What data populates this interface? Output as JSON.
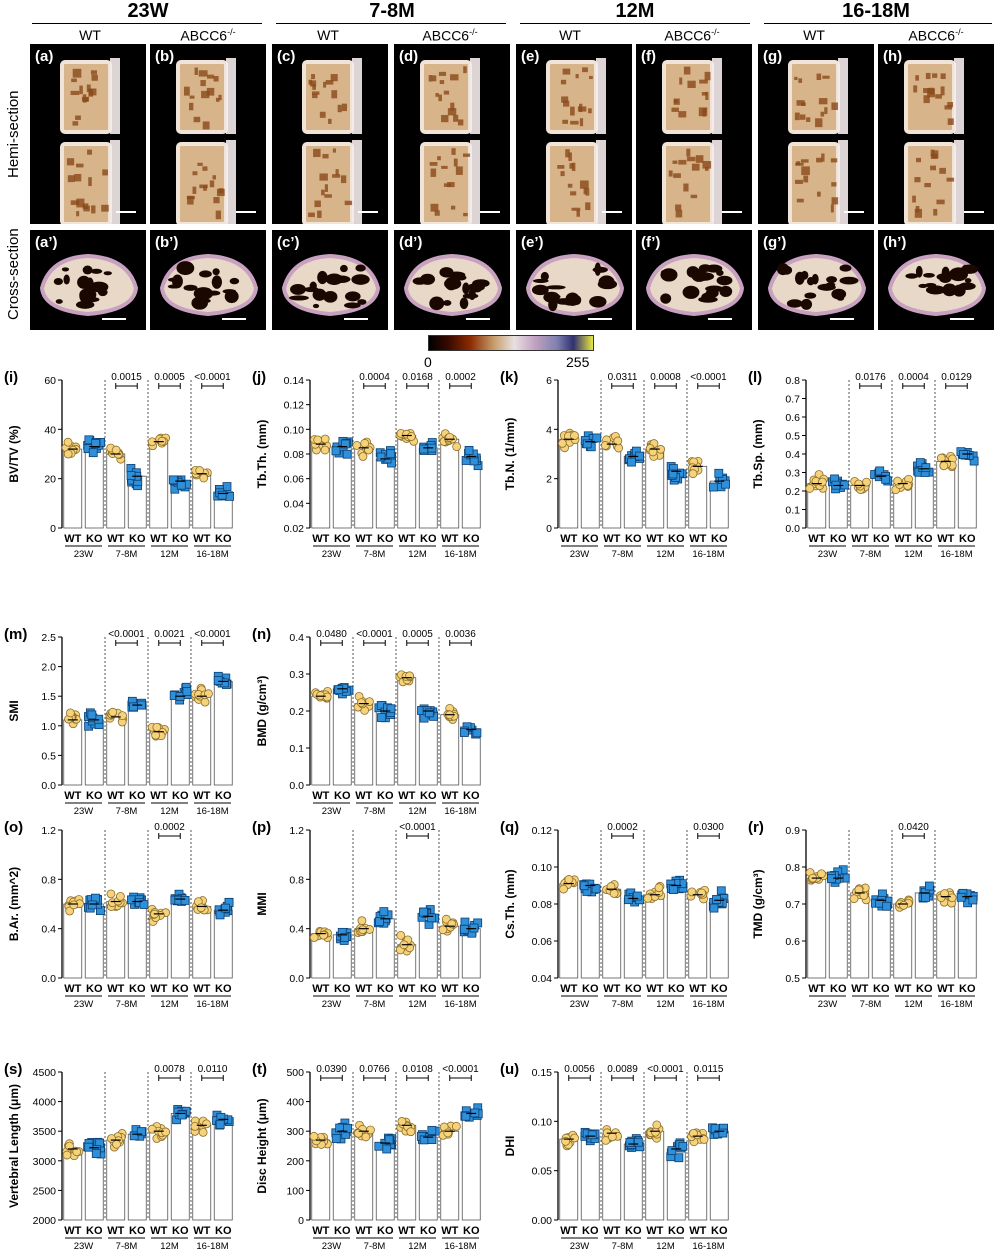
{
  "header": {
    "ages": [
      "23W",
      "7-8M",
      "12M",
      "16-18M"
    ],
    "genotypes": [
      "WT",
      "ABCC6",
      "WT",
      "ABCC6",
      "WT",
      "ABCC6",
      "WT",
      "ABCC6"
    ],
    "genotype_sup": "-/-"
  },
  "row_labels": {
    "hemi": "Hemi-section",
    "cross": "Cross-section"
  },
  "panels": {
    "hemi": [
      "(a)",
      "(b)",
      "(c)",
      "(d)",
      "(e)",
      "(f)",
      "(g)",
      "(h)"
    ],
    "cross": [
      "(a’)",
      "(b’)",
      "(c’)",
      "(d’)",
      "(e’)",
      "(f’)",
      "(g’)",
      "(h’)"
    ]
  },
  "colorbar": {
    "min": "0",
    "max": "255"
  },
  "colors": {
    "wt": "#f6d27a",
    "wt_edge": "#8a6d2a",
    "ko": "#2f8fd8",
    "ko_edge": "#0b3f73"
  },
  "chart_data": [
    {
      "id": "i",
      "label": "(i)",
      "type": "scatter",
      "ylabel": "BV/TV (%)",
      "yticks": [
        "0",
        "20",
        "40",
        "60"
      ],
      "ylim": [
        0,
        60
      ],
      "groups": [
        "23W",
        "7-8M",
        "12M",
        "16-18M"
      ],
      "categories": [
        "WT",
        "KO",
        "WT",
        "KO",
        "WT",
        "KO",
        "WT",
        "KO"
      ],
      "means": [
        32,
        33,
        30,
        21,
        35,
        19,
        22,
        14
      ],
      "pvalues": [
        null,
        "0.0015",
        "0.0005",
        "<0.0001"
      ]
    },
    {
      "id": "j",
      "label": "(j)",
      "type": "scatter",
      "ylabel": "Tb.Th. (mm)",
      "yticks": [
        "0.02",
        "0.04",
        "0.06",
        "0.08",
        "0.10",
        "0.12",
        "0.14"
      ],
      "ylim": [
        0.02,
        0.14
      ],
      "groups": [
        "23W",
        "7-8M",
        "12M",
        "16-18M"
      ],
      "categories": [
        "WT",
        "KO",
        "WT",
        "KO",
        "WT",
        "KO",
        "WT",
        "KO"
      ],
      "means": [
        0.088,
        0.086,
        0.085,
        0.076,
        0.095,
        0.085,
        0.092,
        0.078
      ],
      "pvalues": [
        null,
        "0.0004",
        "0.0168",
        "0.0002"
      ]
    },
    {
      "id": "k",
      "label": "(k)",
      "type": "scatter",
      "ylabel": "Tb.N. (1/mm)",
      "yticks": [
        "0",
        "2",
        "4",
        "6"
      ],
      "ylim": [
        0,
        6
      ],
      "groups": [
        "23W",
        "7-8M",
        "12M",
        "16-18M"
      ],
      "categories": [
        "WT",
        "KO",
        "WT",
        "KO",
        "WT",
        "KO",
        "WT",
        "KO"
      ],
      "means": [
        3.6,
        3.5,
        3.4,
        2.9,
        3.2,
        2.3,
        2.5,
        1.9
      ],
      "pvalues": [
        null,
        "0.0311",
        "0.0008",
        "<0.0001"
      ]
    },
    {
      "id": "l",
      "label": "(l)",
      "type": "scatter",
      "ylabel": "Tb.Sp. (mm)",
      "yticks": [
        "0.0",
        "0.1",
        "0.2",
        "0.3",
        "0.4",
        "0.5",
        "0.6",
        "0.7",
        "0.8"
      ],
      "ylim": [
        0,
        0.8
      ],
      "groups": [
        "23W",
        "7-8M",
        "12M",
        "16-18M"
      ],
      "categories": [
        "WT",
        "KO",
        "WT",
        "KO",
        "WT",
        "KO",
        "WT",
        "KO"
      ],
      "means": [
        0.24,
        0.23,
        0.23,
        0.28,
        0.24,
        0.32,
        0.36,
        0.4
      ],
      "pvalues": [
        null,
        "0.0176",
        "0.0004",
        "0.0129"
      ]
    },
    {
      "id": "m",
      "label": "(m)",
      "type": "scatter",
      "ylabel": "SMI",
      "yticks": [
        "0.0",
        "0.5",
        "1.0",
        "1.5",
        "2.0",
        "2.5"
      ],
      "ylim": [
        0,
        2.5
      ],
      "groups": [
        "23W",
        "7-8M",
        "12M",
        "16-18M"
      ],
      "categories": [
        "WT",
        "KO",
        "WT",
        "KO",
        "WT",
        "KO",
        "WT",
        "KO"
      ],
      "means": [
        1.1,
        1.1,
        1.15,
        1.35,
        0.9,
        1.5,
        1.5,
        1.75
      ],
      "pvalues": [
        null,
        "<0.0001",
        "0.0021",
        "<0.0001"
      ]
    },
    {
      "id": "n",
      "label": "(n)",
      "type": "scatter",
      "ylabel": "BMD (g/cm³)",
      "yticks": [
        "0.0",
        "0.1",
        "0.2",
        "0.3",
        "0.4"
      ],
      "ylim": [
        0,
        0.4
      ],
      "groups": [
        "23W",
        "7-8M",
        "12M",
        "16-18M"
      ],
      "categories": [
        "WT",
        "KO",
        "WT",
        "KO",
        "WT",
        "KO",
        "WT",
        "KO"
      ],
      "means": [
        0.24,
        0.26,
        0.22,
        0.2,
        0.29,
        0.2,
        0.19,
        0.15
      ],
      "pvalues": [
        "0.0480",
        "<0.0001",
        "0.0005",
        "0.0036"
      ]
    },
    {
      "id": "o",
      "label": "(o)",
      "type": "scatter",
      "ylabel": "B.Ar. (mm^2)",
      "yticks": [
        "0.0",
        "0.4",
        "0.8",
        "1.2"
      ],
      "ylim": [
        0,
        1.2
      ],
      "groups": [
        "23W",
        "7-8M",
        "12M",
        "16-18M"
      ],
      "categories": [
        "WT",
        "KO",
        "WT",
        "KO",
        "WT",
        "KO",
        "WT",
        "KO"
      ],
      "means": [
        0.6,
        0.6,
        0.62,
        0.62,
        0.52,
        0.64,
        0.58,
        0.55
      ],
      "pvalues": [
        null,
        null,
        "0.0002",
        null
      ]
    },
    {
      "id": "p",
      "label": "(p)",
      "type": "scatter",
      "ylabel": "MMI",
      "yticks": [
        "0.0",
        "0.4",
        "0.8",
        "1.2"
      ],
      "ylim": [
        0,
        1.2
      ],
      "groups": [
        "23W",
        "7-8M",
        "12M",
        "16-18M"
      ],
      "categories": [
        "WT",
        "KO",
        "WT",
        "KO",
        "WT",
        "KO",
        "WT",
        "KO"
      ],
      "means": [
        0.36,
        0.35,
        0.4,
        0.48,
        0.27,
        0.5,
        0.42,
        0.4
      ],
      "pvalues": [
        null,
        null,
        "<0.0001",
        null
      ]
    },
    {
      "id": "q",
      "label": "(q)",
      "type": "scatter",
      "ylabel": "Cs.Th. (mm)",
      "yticks": [
        "0.04",
        "0.06",
        "0.08",
        "0.10",
        "0.12"
      ],
      "ylim": [
        0.04,
        0.12
      ],
      "groups": [
        "23W",
        "7-8M",
        "12M",
        "16-18M"
      ],
      "categories": [
        "WT",
        "KO",
        "WT",
        "KO",
        "WT",
        "KO",
        "WT",
        "KO"
      ],
      "means": [
        0.091,
        0.09,
        0.088,
        0.083,
        0.085,
        0.09,
        0.085,
        0.082
      ],
      "pvalues": [
        null,
        "0.0002",
        null,
        "0.0300"
      ]
    },
    {
      "id": "r",
      "label": "(r)",
      "type": "scatter",
      "ylabel": "TMD (g/cm³)",
      "yticks": [
        "0.5",
        "0.6",
        "0.7",
        "0.8",
        "0.9"
      ],
      "ylim": [
        0.5,
        0.9
      ],
      "groups": [
        "23W",
        "7-8M",
        "12M",
        "16-18M"
      ],
      "categories": [
        "WT",
        "KO",
        "WT",
        "KO",
        "WT",
        "KO",
        "WT",
        "KO"
      ],
      "means": [
        0.77,
        0.77,
        0.73,
        0.71,
        0.7,
        0.73,
        0.72,
        0.72
      ],
      "pvalues": [
        null,
        null,
        "0.0420",
        null
      ]
    },
    {
      "id": "s",
      "label": "(s)",
      "type": "scatter",
      "ylabel": "Vertebral Length (μm)",
      "yticks": [
        "2000",
        "2500",
        "3000",
        "3500",
        "4000",
        "4500"
      ],
      "ylim": [
        2000,
        4500
      ],
      "groups": [
        "23W",
        "7-8M",
        "12M",
        "16-18M"
      ],
      "categories": [
        "WT",
        "KO",
        "WT",
        "KO",
        "WT",
        "KO",
        "WT",
        "KO"
      ],
      "means": [
        3200,
        3220,
        3350,
        3450,
        3500,
        3800,
        3600,
        3700
      ],
      "pvalues": [
        null,
        null,
        "0.0078",
        "0.0110"
      ]
    },
    {
      "id": "t",
      "label": "(t)",
      "type": "scatter",
      "ylabel": "Disc Height (μm)",
      "yticks": [
        "0",
        "100",
        "200",
        "300",
        "400",
        "500"
      ],
      "ylim": [
        0,
        500
      ],
      "groups": [
        "23W",
        "7-8M",
        "12M",
        "16-18M"
      ],
      "categories": [
        "WT",
        "KO",
        "WT",
        "KO",
        "WT",
        "KO",
        "WT",
        "KO"
      ],
      "means": [
        270,
        300,
        300,
        260,
        320,
        280,
        300,
        360
      ],
      "pvalues": [
        "0.0390",
        "0.0766",
        "0.0108",
        "<0.0001"
      ]
    },
    {
      "id": "u",
      "label": "(u)",
      "type": "scatter",
      "ylabel": "DHI",
      "yticks": [
        "0.00",
        "0.05",
        "0.10",
        "0.15"
      ],
      "ylim": [
        0,
        0.15
      ],
      "groups": [
        "23W",
        "7-8M",
        "12M",
        "16-18M"
      ],
      "categories": [
        "WT",
        "KO",
        "WT",
        "KO",
        "WT",
        "KO",
        "WT",
        "KO"
      ],
      "means": [
        0.082,
        0.085,
        0.088,
        0.077,
        0.09,
        0.072,
        0.085,
        0.09
      ],
      "pvalues": [
        "0.0056",
        "0.0089",
        "<0.0001",
        "0.0115"
      ]
    }
  ]
}
